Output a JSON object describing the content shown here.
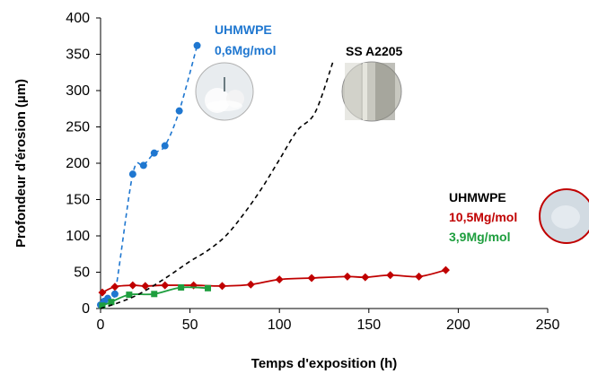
{
  "chart_data": {
    "type": "scatter",
    "title": "",
    "xlabel": "Temps d'exposition (h)",
    "ylabel": "Profondeur d'érosion (µm)",
    "xlim": [
      0,
      250
    ],
    "ylim": [
      0,
      400
    ],
    "xticks": [
      "0",
      "50",
      "100",
      "150",
      "200",
      "250"
    ],
    "yticks": [
      "0",
      "50",
      "100",
      "150",
      "200",
      "250",
      "300",
      "350",
      "400"
    ],
    "grid": false,
    "legend": "none",
    "series": [
      {
        "color": "#1f77d0",
        "marker": "circle",
        "line": "dashed",
        "x": [
          0,
          2,
          4,
          8,
          18,
          24,
          30,
          36,
          44,
          54
        ],
        "y": [
          5,
          10,
          14,
          20,
          185,
          197,
          214,
          224,
          272,
          362
        ]
      },
      {
        "color": "#c00000",
        "marker": "diamond",
        "line": "solid",
        "x": [
          1,
          8,
          18,
          25,
          36,
          52,
          68,
          84,
          100,
          118,
          138,
          148,
          162,
          178,
          193
        ],
        "y": [
          22,
          30,
          32,
          31,
          32,
          32,
          31,
          33,
          40,
          42,
          44,
          43,
          46,
          44,
          53
        ]
      },
      {
        "color": "#1e9e3e",
        "marker": "square",
        "line": "solid",
        "x": [
          1,
          6,
          16,
          30,
          45,
          60
        ],
        "y": [
          4,
          9,
          19,
          20,
          29,
          28
        ]
      },
      {
        "color": "#000000",
        "marker": "none",
        "line": "dashed",
        "x": [
          0,
          10,
          20,
          30,
          40,
          50,
          60,
          70,
          80,
          90,
          100,
          110,
          120,
          130
        ],
        "y": [
          0,
          8,
          18,
          32,
          48,
          65,
          80,
          100,
          130,
          165,
          205,
          245,
          270,
          340
        ]
      }
    ],
    "annotations": {
      "uhmwpe_low_name": "UHMWPE",
      "uhmwpe_low_mass": "0,6Mg/mol",
      "ss": "SS A2205",
      "uhmwpe_high_name": "UHMWPE",
      "uhmwpe_high_mass1": "10,5Mg/mol",
      "uhmwpe_high_mass2": "3,9Mg/mol"
    }
  },
  "colors": {
    "blue": "#1f77d0",
    "red": "#c00000",
    "green": "#1e9e3e",
    "black": "#000000"
  }
}
